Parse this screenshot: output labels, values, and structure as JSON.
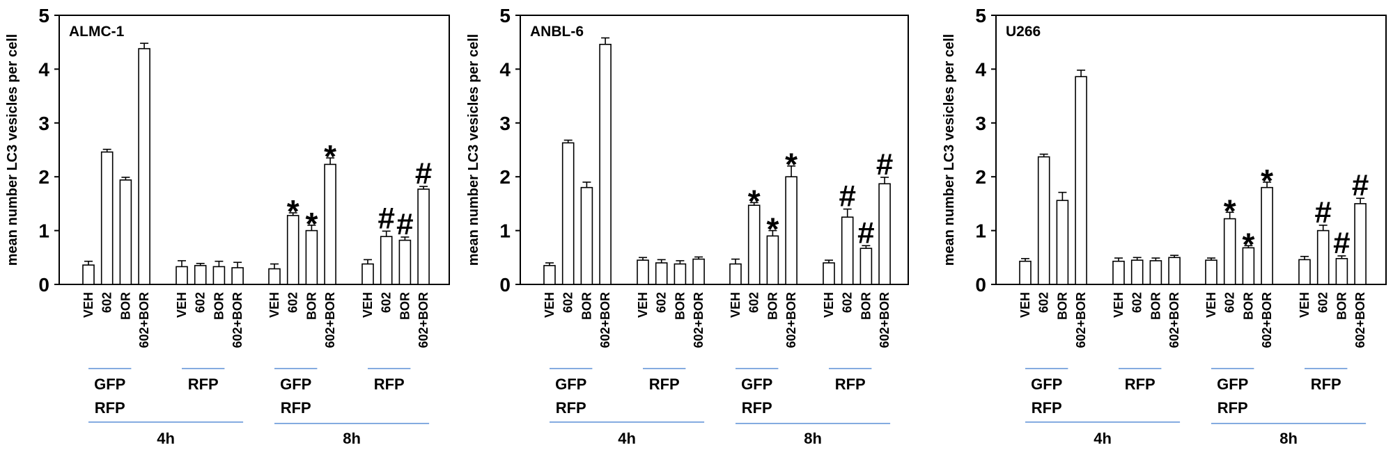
{
  "chart_data": [
    {
      "type": "bar",
      "title": "ALMC-1",
      "ylabel": "mean number LC3 vesicles per cell",
      "ylim": [
        0,
        5
      ],
      "yticks": [
        "0",
        "1",
        "2",
        "3",
        "4",
        "5"
      ],
      "grid": false,
      "categories": [
        "VEH",
        "602",
        "BOR",
        "602+BOR"
      ],
      "groups": [
        {
          "label": [
            "GFP",
            "RFP"
          ],
          "time": "4h",
          "values": [
            0.36,
            2.46,
            1.94,
            4.38
          ],
          "errors": [
            0.07,
            0.05,
            0.05,
            0.1
          ],
          "markers": [
            "",
            "",
            "",
            ""
          ]
        },
        {
          "label": [
            "RFP"
          ],
          "time": "4h",
          "values": [
            0.33,
            0.35,
            0.33,
            0.31
          ],
          "errors": [
            0.11,
            0.04,
            0.1,
            0.1
          ],
          "markers": [
            "",
            "",
            "",
            ""
          ]
        },
        {
          "label": [
            "GFP",
            "RFP"
          ],
          "time": "8h",
          "values": [
            0.29,
            1.28,
            1.0,
            2.23
          ],
          "errors": [
            0.09,
            0.05,
            0.1,
            0.12
          ],
          "markers": [
            "",
            "*",
            "*",
            "*"
          ]
        },
        {
          "label": [
            "RFP"
          ],
          "time": "8h",
          "values": [
            0.38,
            0.89,
            0.82,
            1.77
          ],
          "errors": [
            0.08,
            0.1,
            0.06,
            0.05
          ],
          "markers": [
            "",
            "#",
            "#",
            "#"
          ]
        }
      ],
      "time_labels": [
        "4h",
        "8h"
      ]
    },
    {
      "type": "bar",
      "title": "ANBL-6",
      "ylabel": "mean number LC3 vesicles per cell",
      "ylim": [
        0,
        5
      ],
      "yticks": [
        "0",
        "1",
        "2",
        "3",
        "4",
        "5"
      ],
      "grid": false,
      "categories": [
        "VEH",
        "602",
        "BOR",
        "602+BOR"
      ],
      "groups": [
        {
          "label": [
            "GFP",
            "RFP"
          ],
          "time": "4h",
          "values": [
            0.35,
            2.63,
            1.8,
            4.46
          ],
          "errors": [
            0.05,
            0.05,
            0.1,
            0.12
          ],
          "markers": [
            "",
            "",
            "",
            ""
          ]
        },
        {
          "label": [
            "RFP"
          ],
          "time": "4h",
          "values": [
            0.45,
            0.4,
            0.38,
            0.47
          ],
          "errors": [
            0.05,
            0.06,
            0.06,
            0.04
          ],
          "markers": [
            "",
            "",
            "",
            ""
          ]
        },
        {
          "label": [
            "GFP",
            "RFP"
          ],
          "time": "8h",
          "values": [
            0.38,
            1.47,
            0.9,
            2.0
          ],
          "errors": [
            0.09,
            0.05,
            0.1,
            0.2
          ],
          "markers": [
            "",
            "*",
            "*",
            "*"
          ]
        },
        {
          "label": [
            "RFP"
          ],
          "time": "8h",
          "values": [
            0.4,
            1.25,
            0.67,
            1.87
          ],
          "errors": [
            0.05,
            0.15,
            0.05,
            0.12
          ],
          "markers": [
            "",
            "#",
            "#",
            "#"
          ]
        }
      ],
      "time_labels": [
        "4h",
        "8h"
      ]
    },
    {
      "type": "bar",
      "title": "U266",
      "ylabel": "mean number LC3 vesicles per cell",
      "ylim": [
        0,
        5
      ],
      "yticks": [
        "0",
        "1",
        "2",
        "3",
        "4",
        "5"
      ],
      "grid": false,
      "categories": [
        "VEH",
        "602",
        "BOR",
        "602+BOR"
      ],
      "groups": [
        {
          "label": [
            "GFP",
            "RFP"
          ],
          "time": "4h",
          "values": [
            0.43,
            2.37,
            1.56,
            3.86
          ],
          "errors": [
            0.05,
            0.05,
            0.15,
            0.12
          ],
          "markers": [
            "",
            "",
            "",
            ""
          ]
        },
        {
          "label": [
            "RFP"
          ],
          "time": "4h",
          "values": [
            0.43,
            0.45,
            0.44,
            0.5
          ],
          "errors": [
            0.06,
            0.05,
            0.05,
            0.04
          ],
          "markers": [
            "",
            "",
            "",
            ""
          ]
        },
        {
          "label": [
            "GFP",
            "RFP"
          ],
          "time": "8h",
          "values": [
            0.45,
            1.22,
            0.68,
            1.8
          ],
          "errors": [
            0.04,
            0.12,
            0.04,
            0.1
          ],
          "markers": [
            "",
            "*",
            "*",
            "*"
          ]
        },
        {
          "label": [
            "RFP"
          ],
          "time": "8h",
          "values": [
            0.46,
            1.0,
            0.48,
            1.5
          ],
          "errors": [
            0.06,
            0.1,
            0.05,
            0.1
          ],
          "markers": [
            "",
            "#",
            "#",
            "#"
          ]
        }
      ],
      "time_labels": [
        "4h",
        "8h"
      ]
    }
  ],
  "colors": {
    "bar_fill": "#ffffff",
    "bar_stroke": "#000000",
    "group_line": "#5b8fd6"
  }
}
